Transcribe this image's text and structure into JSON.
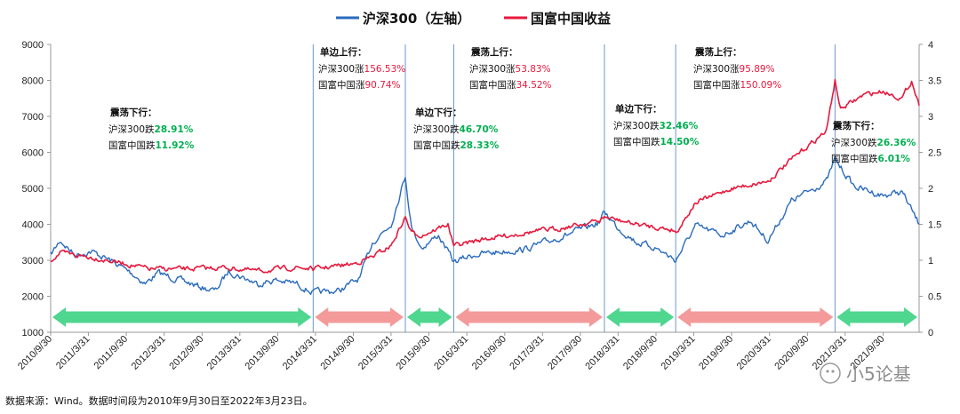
{
  "chart_data": {
    "type": "line",
    "title": "",
    "legend": {
      "placement": "top-center",
      "items": [
        "沪深300（左轴）",
        "国富中国收益"
      ]
    },
    "colors": {
      "csi300": "#2a6bbd",
      "fund": "#e8193d",
      "up_arrow": "#f49a9a",
      "down_arrow": "#4fd68f",
      "up_text": "#e8193d",
      "down_text": "#00b050"
    },
    "y_left": {
      "ticks": [
        "9000",
        "8000",
        "7000",
        "6000",
        "5000",
        "4000",
        "3000",
        "2000",
        "1000"
      ],
      "range": [
        1000,
        9000
      ]
    },
    "y_right": {
      "ticks": [
        "4",
        "3.5",
        "3",
        "2.5",
        "2",
        "1.5",
        "1",
        "0.5",
        "0"
      ],
      "range": [
        0,
        4
      ]
    },
    "x_ticks": [
      "2010/9/30",
      "2011/3/31",
      "2011/9/30",
      "2012/3/31",
      "2012/9/30",
      "2013/3/31",
      "2013/9/30",
      "2014/3/31",
      "2014/9/30",
      "2015/3/31",
      "2015/9/30",
      "2016/3/31",
      "2016/9/30",
      "2017/3/31",
      "2017/9/30",
      "2018/3/31",
      "2018/9/30",
      "2019/3/31",
      "2019/9/30",
      "2020/3/31",
      "2020/9/30",
      "2021/3/31",
      "2021/9/30"
    ],
    "x_range": [
      "2010/9/30",
      "2022/3/23"
    ],
    "series": [
      {
        "name": "沪深300（左轴）",
        "axis": "left",
        "x": [
          "2010/9/30",
          "2010/11/15",
          "2011/1/25",
          "2011/4/15",
          "2011/7/15",
          "2011/10/25",
          "2011/12/31",
          "2012/3/1",
          "2012/6/15",
          "2012/9/25",
          "2012/12/3",
          "2013/2/5",
          "2013/6/25",
          "2013/9/15",
          "2013/12/31",
          "2014/3/20",
          "2014/7/20",
          "2014/10/31",
          "2014/12/31",
          "2015/3/31",
          "2015/6/8",
          "2015/7/8",
          "2015/8/26",
          "2015/11/15",
          "2016/1/28",
          "2016/4/30",
          "2016/9/30",
          "2016/12/31",
          "2017/6/30",
          "2017/12/31",
          "2018/1/24",
          "2018/3/31",
          "2018/6/30",
          "2018/9/30",
          "2019/1/3",
          "2019/4/8",
          "2019/8/15",
          "2019/12/31",
          "2020/3/23",
          "2020/7/15",
          "2020/12/31",
          "2021/2/10",
          "2021/5/15",
          "2021/9/30",
          "2021/12/31",
          "2022/3/23"
        ],
        "y": [
          3150,
          3550,
          3150,
          3250,
          3000,
          2650,
          2350,
          2650,
          2450,
          2250,
          2150,
          2700,
          2350,
          2450,
          2350,
          2100,
          2150,
          2500,
          3500,
          4000,
          5350,
          3900,
          3350,
          3700,
          2950,
          3150,
          3250,
          3300,
          3650,
          4050,
          4350,
          3900,
          3500,
          3350,
          3000,
          3950,
          3700,
          4100,
          3550,
          4650,
          5200,
          5800,
          5050,
          4800,
          4900,
          4000
        ]
      },
      {
        "name": "国富中国收益",
        "axis": "right",
        "x": [
          "2010/9/30",
          "2010/11/15",
          "2011/3/31",
          "2011/9/30",
          "2012/1/15",
          "2012/7/15",
          "2013/1/15",
          "2013/6/25",
          "2013/12/31",
          "2014/3/20",
          "2014/9/30",
          "2014/12/31",
          "2015/3/31",
          "2015/6/8",
          "2015/7/8",
          "2015/8/26",
          "2015/12/31",
          "2016/1/28",
          "2016/6/30",
          "2016/12/31",
          "2017/6/30",
          "2017/12/31",
          "2018/1/24",
          "2018/6/30",
          "2018/12/31",
          "2019/1/3",
          "2019/4/8",
          "2019/9/30",
          "2020/3/23",
          "2020/7/15",
          "2020/12/31",
          "2021/2/10",
          "2021/3/9",
          "2021/6/30",
          "2021/9/30",
          "2021/12/31",
          "2022/2/15",
          "2022/3/23"
        ],
        "y": [
          1.0,
          1.1,
          1.05,
          0.95,
          0.88,
          0.88,
          0.9,
          0.85,
          0.9,
          0.88,
          0.95,
          1.05,
          1.2,
          1.6,
          1.38,
          1.35,
          1.5,
          1.2,
          1.3,
          1.38,
          1.45,
          1.55,
          1.6,
          1.5,
          1.42,
          1.38,
          1.8,
          2.0,
          2.1,
          2.4,
          2.8,
          3.5,
          3.1,
          3.3,
          3.35,
          3.25,
          3.5,
          3.15
        ]
      }
    ],
    "phases": [
      {
        "from": "2010/9/30",
        "to": "2014/3/20",
        "direction": "down"
      },
      {
        "from": "2014/3/20",
        "to": "2015/6/8",
        "direction": "up"
      },
      {
        "from": "2015/6/8",
        "to": "2016/1/28",
        "direction": "down"
      },
      {
        "from": "2016/1/28",
        "to": "2018/1/24",
        "direction": "up"
      },
      {
        "from": "2018/1/24",
        "to": "2019/1/3",
        "direction": "down"
      },
      {
        "from": "2019/1/3",
        "to": "2021/2/10",
        "direction": "up"
      },
      {
        "from": "2021/2/10",
        "to": "2022/3/23",
        "direction": "down"
      }
    ],
    "phase_dividers": [
      "2014/3/20",
      "2015/6/8",
      "2016/1/28",
      "2018/1/24",
      "2019/1/3",
      "2021/2/10"
    ],
    "annotations": [
      {
        "title": "震荡下行：",
        "lines": [
          {
            "label": "沪深300跌",
            "value": "28.91%",
            "kind": "down"
          },
          {
            "label": "国富中国跌",
            "value": "11.92%",
            "kind": "down"
          }
        ]
      },
      {
        "title": "单边上行：",
        "lines": [
          {
            "label": "沪深300涨",
            "value": "156.53%",
            "kind": "up"
          },
          {
            "label": "国富中国涨",
            "value": "90.74%",
            "kind": "up"
          }
        ]
      },
      {
        "title": "单边下行：",
        "lines": [
          {
            "label": "沪深300跌",
            "value": "46.70%",
            "kind": "down"
          },
          {
            "label": "国富中国跌",
            "value": "28.33%",
            "kind": "down"
          }
        ]
      },
      {
        "title": "震荡上行：",
        "lines": [
          {
            "label": "沪深300涨",
            "value": "53.83%",
            "kind": "up"
          },
          {
            "label": "国富中国涨",
            "value": "34.52%",
            "kind": "up"
          }
        ]
      },
      {
        "title": "单边下行：",
        "lines": [
          {
            "label": "沪深300跌",
            "value": "32.46%",
            "kind": "down"
          },
          {
            "label": "国富中国跌",
            "value": "14.50%",
            "kind": "down"
          }
        ]
      },
      {
        "title": "震荡上行：",
        "lines": [
          {
            "label": "沪深300涨",
            "value": "95.89%",
            "kind": "up"
          },
          {
            "label": "国富中国涨",
            "value": "150.09%",
            "kind": "up"
          }
        ]
      },
      {
        "title": "震荡下行：",
        "lines": [
          {
            "label": "沪深300跌",
            "value": "26.36%",
            "kind": "down"
          },
          {
            "label": "国富中国跌",
            "value": "6.01%",
            "kind": "down"
          }
        ]
      }
    ],
    "source": "数据来源：Wind。数据时间段为2010年9月30日至2022年3月23日。",
    "watermark": "小5论基",
    "grid": false
  }
}
